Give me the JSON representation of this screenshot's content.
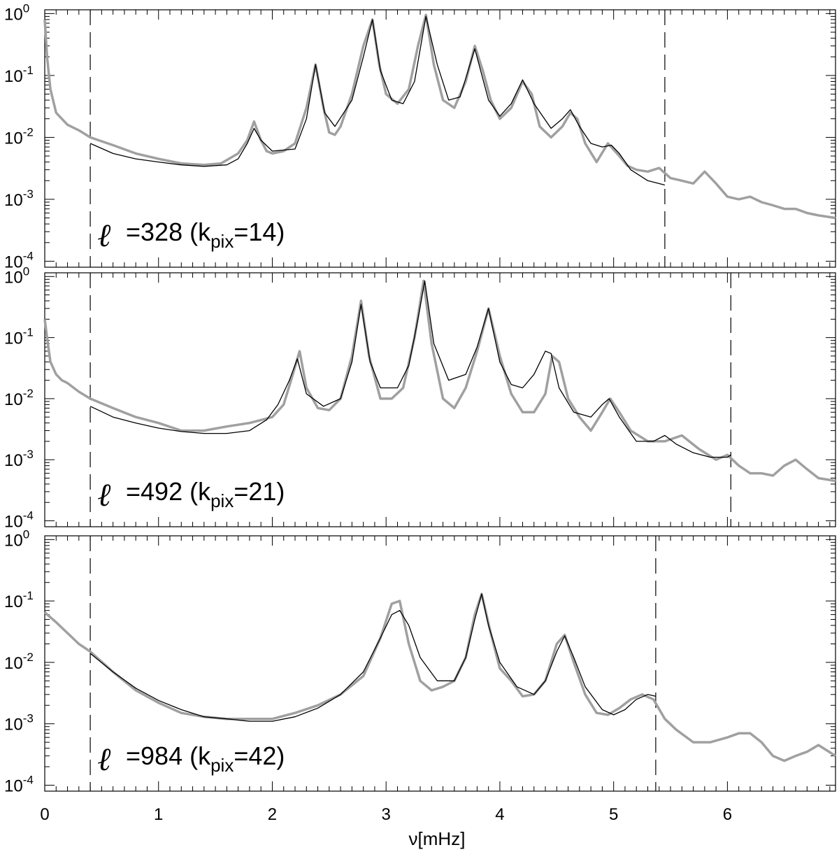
{
  "chart_data": {
    "type": "line",
    "x_axis": {
      "label": "ν[mHz]",
      "range": [
        0,
        6.95
      ],
      "major_ticks": [
        0,
        1,
        2,
        3,
        4,
        5,
        6
      ],
      "tick_labels": [
        "0",
        "1",
        "2",
        "3",
        "4",
        "5",
        "6"
      ],
      "minor_step": 0.1
    },
    "y_axis": {
      "scale": "log",
      "range": [
        8e-05,
        1.15
      ],
      "tick_labels": [
        {
          "base": "10",
          "exp": "0"
        },
        {
          "base": "10",
          "exp": "-1"
        },
        {
          "base": "10",
          "exp": "-2"
        },
        {
          "base": "10",
          "exp": "-3"
        },
        {
          "base": "10",
          "exp": "-4"
        }
      ]
    },
    "colors": {
      "observed": "#a0a0a0",
      "fit": "#000000",
      "markers": "#000000"
    },
    "panels": [
      {
        "label_symbol": "ℓ",
        "label_text": "=328 (k",
        "label_sub": "pix",
        "label_end": "=14)",
        "fit_range_markers": [
          0.4,
          5.45
        ],
        "observed": {
          "x": [
            0.0,
            0.02,
            0.05,
            0.1,
            0.15,
            0.2,
            0.3,
            0.4,
            0.6,
            0.8,
            1.0,
            1.2,
            1.4,
            1.55,
            1.7,
            1.78,
            1.84,
            1.9,
            1.95,
            2.0,
            2.1,
            2.2,
            2.3,
            2.38,
            2.45,
            2.5,
            2.55,
            2.6,
            2.7,
            2.8,
            2.88,
            2.94,
            3.0,
            3.1,
            3.2,
            3.28,
            3.35,
            3.42,
            3.5,
            3.6,
            3.7,
            3.78,
            3.85,
            3.92,
            4.0,
            4.1,
            4.2,
            4.28,
            4.35,
            4.45,
            4.55,
            4.62,
            4.68,
            4.75,
            4.85,
            4.95,
            5.05,
            5.12,
            5.2,
            5.3,
            5.4,
            5.5,
            5.6,
            5.7,
            5.8,
            5.9,
            6.0,
            6.1,
            6.2,
            6.3,
            6.4,
            6.5,
            6.6,
            6.7,
            6.8,
            6.95
          ],
          "y": [
            0.8,
            0.2,
            0.06,
            0.025,
            0.02,
            0.016,
            0.013,
            0.01,
            0.0075,
            0.0055,
            0.0045,
            0.0038,
            0.0036,
            0.0038,
            0.0055,
            0.009,
            0.018,
            0.009,
            0.006,
            0.0055,
            0.006,
            0.008,
            0.03,
            0.15,
            0.03,
            0.012,
            0.011,
            0.015,
            0.05,
            0.3,
            0.8,
            0.15,
            0.05,
            0.035,
            0.06,
            0.3,
            0.95,
            0.15,
            0.04,
            0.03,
            0.08,
            0.3,
            0.12,
            0.04,
            0.02,
            0.03,
            0.08,
            0.05,
            0.015,
            0.01,
            0.015,
            0.025,
            0.02,
            0.008,
            0.004,
            0.008,
            0.005,
            0.0035,
            0.003,
            0.0028,
            0.0032,
            0.0022,
            0.002,
            0.0018,
            0.0028,
            0.0018,
            0.0011,
            0.001,
            0.0011,
            0.0009,
            0.0008,
            0.0007,
            0.0007,
            0.0006,
            0.00055,
            0.0005
          ]
        },
        "fit": {
          "x": [
            0.4,
            0.6,
            0.8,
            1.0,
            1.2,
            1.4,
            1.6,
            1.7,
            1.78,
            1.84,
            1.9,
            2.0,
            2.2,
            2.3,
            2.38,
            2.46,
            2.55,
            2.7,
            2.8,
            2.88,
            2.95,
            3.05,
            3.15,
            3.25,
            3.35,
            3.45,
            3.55,
            3.65,
            3.78,
            3.9,
            4.0,
            4.1,
            4.2,
            4.3,
            4.45,
            4.55,
            4.62,
            4.7,
            4.8,
            4.9,
            4.98,
            5.05,
            5.15,
            5.3,
            5.45
          ],
          "y": [
            0.008,
            0.0055,
            0.0045,
            0.004,
            0.0036,
            0.0034,
            0.0036,
            0.0045,
            0.008,
            0.014,
            0.009,
            0.006,
            0.0065,
            0.02,
            0.15,
            0.025,
            0.015,
            0.04,
            0.2,
            0.8,
            0.12,
            0.04,
            0.035,
            0.08,
            0.9,
            0.15,
            0.04,
            0.045,
            0.27,
            0.04,
            0.022,
            0.035,
            0.085,
            0.035,
            0.014,
            0.02,
            0.028,
            0.015,
            0.008,
            0.007,
            0.0075,
            0.0055,
            0.003,
            0.002,
            0.0017
          ]
        }
      },
      {
        "label_symbol": "ℓ",
        "label_text": "=492 (k",
        "label_sub": "pix",
        "label_end": "=21)",
        "fit_range_markers": [
          0.4,
          6.03
        ],
        "observed": {
          "x": [
            0.0,
            0.02,
            0.05,
            0.1,
            0.15,
            0.2,
            0.3,
            0.4,
            0.6,
            0.8,
            1.0,
            1.2,
            1.4,
            1.6,
            1.8,
            2.0,
            2.1,
            2.18,
            2.24,
            2.3,
            2.4,
            2.5,
            2.6,
            2.7,
            2.78,
            2.85,
            2.95,
            3.05,
            3.15,
            3.25,
            3.33,
            3.4,
            3.5,
            3.6,
            3.7,
            3.8,
            3.9,
            4.0,
            4.1,
            4.2,
            4.3,
            4.4,
            4.46,
            4.52,
            4.6,
            4.7,
            4.8,
            4.9,
            4.97,
            5.05,
            5.15,
            5.3,
            5.45,
            5.6,
            5.75,
            5.9,
            6.0,
            6.1,
            6.2,
            6.3,
            6.4,
            6.5,
            6.6,
            6.7,
            6.8,
            6.95
          ],
          "y": [
            0.2,
            0.1,
            0.04,
            0.025,
            0.02,
            0.018,
            0.013,
            0.01,
            0.007,
            0.005,
            0.004,
            0.003,
            0.003,
            0.0035,
            0.004,
            0.005,
            0.008,
            0.025,
            0.06,
            0.015,
            0.007,
            0.0065,
            0.01,
            0.05,
            0.4,
            0.05,
            0.01,
            0.01,
            0.015,
            0.1,
            0.85,
            0.08,
            0.01,
            0.007,
            0.015,
            0.06,
            0.3,
            0.05,
            0.012,
            0.006,
            0.006,
            0.012,
            0.05,
            0.04,
            0.01,
            0.005,
            0.003,
            0.006,
            0.01,
            0.006,
            0.003,
            0.002,
            0.002,
            0.0025,
            0.0015,
            0.001,
            0.0012,
            0.0008,
            0.0006,
            0.0006,
            0.00055,
            0.0008,
            0.001,
            0.0007,
            0.0005,
            0.00045
          ]
        },
        "fit": {
          "x": [
            0.4,
            0.6,
            0.8,
            1.0,
            1.2,
            1.4,
            1.6,
            1.8,
            1.95,
            2.05,
            2.15,
            2.22,
            2.3,
            2.45,
            2.6,
            2.7,
            2.78,
            2.86,
            2.95,
            3.1,
            3.2,
            3.28,
            3.34,
            3.42,
            3.55,
            3.7,
            3.8,
            3.9,
            4.0,
            4.1,
            4.2,
            4.3,
            4.4,
            4.45,
            4.52,
            4.65,
            4.8,
            4.9,
            4.96,
            5.05,
            5.2,
            5.35,
            5.45,
            5.55,
            5.7,
            5.85,
            6.0,
            6.03
          ],
          "y": [
            0.0075,
            0.005,
            0.004,
            0.0033,
            0.0029,
            0.0027,
            0.0027,
            0.003,
            0.0045,
            0.008,
            0.02,
            0.045,
            0.012,
            0.0075,
            0.01,
            0.04,
            0.35,
            0.04,
            0.015,
            0.015,
            0.035,
            0.2,
            0.85,
            0.08,
            0.02,
            0.025,
            0.07,
            0.3,
            0.04,
            0.017,
            0.015,
            0.025,
            0.06,
            0.055,
            0.015,
            0.006,
            0.005,
            0.008,
            0.01,
            0.005,
            0.002,
            0.002,
            0.0025,
            0.0018,
            0.0013,
            0.0011,
            0.0011,
            0.0012
          ]
        }
      },
      {
        "label_symbol": "ℓ",
        "label_text": "=984 (k",
        "label_sub": "pix",
        "label_end": "=42)",
        "fit_range_markers": [
          0.4,
          5.37
        ],
        "observed": {
          "x": [
            0.0,
            0.1,
            0.2,
            0.3,
            0.4,
            0.6,
            0.8,
            1.0,
            1.2,
            1.4,
            1.6,
            1.8,
            2.0,
            2.2,
            2.4,
            2.6,
            2.8,
            2.95,
            3.05,
            3.12,
            3.2,
            3.3,
            3.4,
            3.5,
            3.6,
            3.7,
            3.78,
            3.84,
            3.92,
            4.0,
            4.1,
            4.2,
            4.3,
            4.4,
            4.5,
            4.57,
            4.65,
            4.75,
            4.85,
            4.95,
            5.05,
            5.15,
            5.25,
            5.35,
            5.45,
            5.55,
            5.7,
            5.85,
            6.0,
            6.1,
            6.2,
            6.3,
            6.4,
            6.5,
            6.6,
            6.7,
            6.8,
            6.95
          ],
          "y": [
            0.065,
            0.045,
            0.03,
            0.02,
            0.015,
            0.007,
            0.0035,
            0.0022,
            0.0015,
            0.0013,
            0.0012,
            0.0012,
            0.0012,
            0.0015,
            0.002,
            0.003,
            0.006,
            0.025,
            0.09,
            0.1,
            0.02,
            0.005,
            0.0035,
            0.004,
            0.005,
            0.012,
            0.06,
            0.13,
            0.03,
            0.008,
            0.005,
            0.0028,
            0.003,
            0.005,
            0.02,
            0.028,
            0.01,
            0.003,
            0.0015,
            0.0014,
            0.0018,
            0.0025,
            0.003,
            0.0025,
            0.0012,
            0.0008,
            0.0005,
            0.0005,
            0.0006,
            0.0007,
            0.0007,
            0.0005,
            0.0003,
            0.00025,
            0.0003,
            0.00035,
            0.00045,
            0.0003
          ]
        },
        "fit": {
          "x": [
            0.4,
            0.6,
            0.8,
            1.0,
            1.2,
            1.4,
            1.6,
            1.8,
            2.0,
            2.2,
            2.4,
            2.6,
            2.8,
            2.95,
            3.05,
            3.12,
            3.2,
            3.3,
            3.45,
            3.6,
            3.7,
            3.78,
            3.84,
            3.9,
            4.0,
            4.15,
            4.3,
            4.4,
            4.5,
            4.57,
            4.65,
            4.75,
            4.9,
            5.0,
            5.1,
            5.2,
            5.3,
            5.37
          ],
          "y": [
            0.014,
            0.007,
            0.0038,
            0.0024,
            0.0017,
            0.0013,
            0.0012,
            0.0011,
            0.0011,
            0.0013,
            0.0018,
            0.003,
            0.007,
            0.025,
            0.06,
            0.07,
            0.04,
            0.012,
            0.005,
            0.005,
            0.012,
            0.05,
            0.13,
            0.04,
            0.01,
            0.004,
            0.003,
            0.005,
            0.015,
            0.027,
            0.012,
            0.004,
            0.0017,
            0.0014,
            0.0017,
            0.0025,
            0.003,
            0.0028
          ]
        }
      }
    ]
  }
}
